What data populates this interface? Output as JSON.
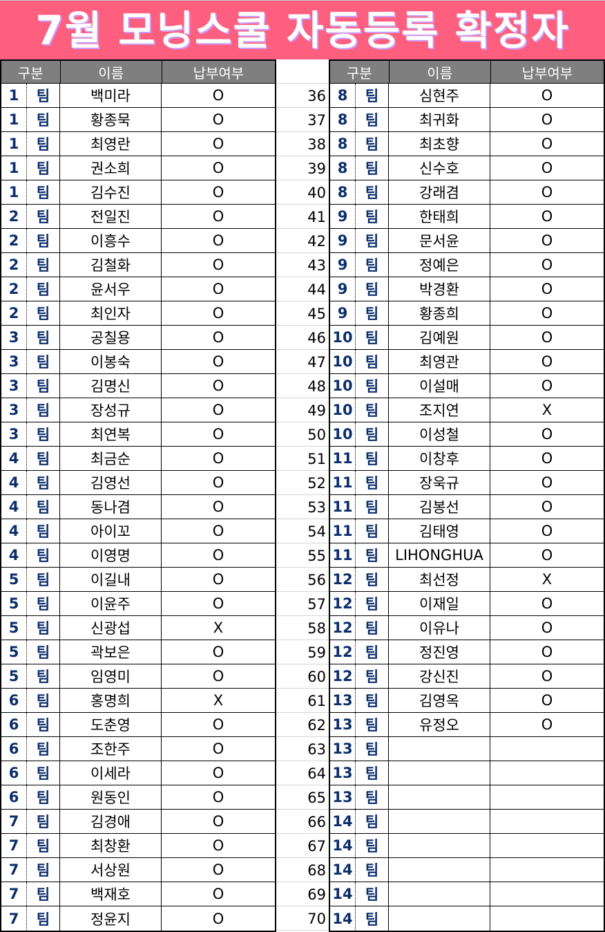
{
  "title": "7월 모닝스쿨 자동등록 확정자",
  "headers": {
    "group": "구분",
    "name": "이름",
    "paid": "납부여부"
  },
  "team_suffix": "팀",
  "left_rows": [
    {
      "team": "1",
      "name": "백미라",
      "paid": "O"
    },
    {
      "team": "1",
      "name": "황종묵",
      "paid": "O"
    },
    {
      "team": "1",
      "name": "최영란",
      "paid": "O"
    },
    {
      "team": "1",
      "name": "권소희",
      "paid": "O"
    },
    {
      "team": "1",
      "name": "김수진",
      "paid": "O"
    },
    {
      "team": "2",
      "name": "전일진",
      "paid": "O"
    },
    {
      "team": "2",
      "name": "이흥수",
      "paid": "O"
    },
    {
      "team": "2",
      "name": "김철화",
      "paid": "O"
    },
    {
      "team": "2",
      "name": "윤서우",
      "paid": "O"
    },
    {
      "team": "2",
      "name": "최인자",
      "paid": "O"
    },
    {
      "team": "3",
      "name": "공칠용",
      "paid": "O"
    },
    {
      "team": "3",
      "name": "이봉숙",
      "paid": "O"
    },
    {
      "team": "3",
      "name": "김명신",
      "paid": "O"
    },
    {
      "team": "3",
      "name": "장성규",
      "paid": "O"
    },
    {
      "team": "3",
      "name": "최연복",
      "paid": "O"
    },
    {
      "team": "4",
      "name": "최금순",
      "paid": "O"
    },
    {
      "team": "4",
      "name": "김영선",
      "paid": "O"
    },
    {
      "team": "4",
      "name": "동나겸",
      "paid": "O"
    },
    {
      "team": "4",
      "name": "아이꼬",
      "paid": "O"
    },
    {
      "team": "4",
      "name": "이영명",
      "paid": "O"
    },
    {
      "team": "5",
      "name": "이길내",
      "paid": "O"
    },
    {
      "team": "5",
      "name": "이윤주",
      "paid": "O"
    },
    {
      "team": "5",
      "name": "신광섭",
      "paid": "X"
    },
    {
      "team": "5",
      "name": "곽보은",
      "paid": "O"
    },
    {
      "team": "5",
      "name": "임영미",
      "paid": "O"
    },
    {
      "team": "6",
      "name": "홍명희",
      "paid": "X"
    },
    {
      "team": "6",
      "name": "도춘영",
      "paid": "O"
    },
    {
      "team": "6",
      "name": "조한주",
      "paid": "O"
    },
    {
      "team": "6",
      "name": "이세라",
      "paid": "O"
    },
    {
      "team": "6",
      "name": "원동인",
      "paid": "O"
    },
    {
      "team": "7",
      "name": "김경애",
      "paid": "O"
    },
    {
      "team": "7",
      "name": "최창환",
      "paid": "O"
    },
    {
      "team": "7",
      "name": "서상원",
      "paid": "O"
    },
    {
      "team": "7",
      "name": "백재호",
      "paid": "O"
    },
    {
      "team": "7",
      "name": "정윤지",
      "paid": "O"
    }
  ],
  "right_rows": [
    {
      "no": "36",
      "team": "8",
      "name": "심현주",
      "paid": "O"
    },
    {
      "no": "37",
      "team": "8",
      "name": "최귀화",
      "paid": "O"
    },
    {
      "no": "38",
      "team": "8",
      "name": "최초향",
      "paid": "O"
    },
    {
      "no": "39",
      "team": "8",
      "name": "신수호",
      "paid": "O"
    },
    {
      "no": "40",
      "team": "8",
      "name": "강래겸",
      "paid": "O"
    },
    {
      "no": "41",
      "team": "9",
      "name": "한태희",
      "paid": "O"
    },
    {
      "no": "42",
      "team": "9",
      "name": "문서윤",
      "paid": "O"
    },
    {
      "no": "43",
      "team": "9",
      "name": "정예은",
      "paid": "O"
    },
    {
      "no": "44",
      "team": "9",
      "name": "박경환",
      "paid": "O"
    },
    {
      "no": "45",
      "team": "9",
      "name": "황종희",
      "paid": "O"
    },
    {
      "no": "46",
      "team": "10",
      "name": "김예원",
      "paid": "O"
    },
    {
      "no": "47",
      "team": "10",
      "name": "최영관",
      "paid": "O"
    },
    {
      "no": "48",
      "team": "10",
      "name": "이설매",
      "paid": "O"
    },
    {
      "no": "49",
      "team": "10",
      "name": "조지연",
      "paid": "X"
    },
    {
      "no": "50",
      "team": "10",
      "name": "이성철",
      "paid": "O"
    },
    {
      "no": "51",
      "team": "11",
      "name": "이창후",
      "paid": "O"
    },
    {
      "no": "52",
      "team": "11",
      "name": "장욱규",
      "paid": "O"
    },
    {
      "no": "53",
      "team": "11",
      "name": "김봉선",
      "paid": "O"
    },
    {
      "no": "54",
      "team": "11",
      "name": "김태영",
      "paid": "O"
    },
    {
      "no": "55",
      "team": "11",
      "name": "LIHONGHUA",
      "paid": "O"
    },
    {
      "no": "56",
      "team": "12",
      "name": "최선정",
      "paid": "X"
    },
    {
      "no": "57",
      "team": "12",
      "name": "이재일",
      "paid": "O"
    },
    {
      "no": "58",
      "team": "12",
      "name": "이유나",
      "paid": "O"
    },
    {
      "no": "59",
      "team": "12",
      "name": "정진영",
      "paid": "O"
    },
    {
      "no": "60",
      "team": "12",
      "name": "강신진",
      "paid": "O"
    },
    {
      "no": "61",
      "team": "13",
      "name": "김영옥",
      "paid": "O"
    },
    {
      "no": "62",
      "team": "13",
      "name": "유정오",
      "paid": "O"
    },
    {
      "no": "63",
      "team": "13",
      "name": "",
      "paid": ""
    },
    {
      "no": "64",
      "team": "13",
      "name": "",
      "paid": ""
    },
    {
      "no": "65",
      "team": "13",
      "name": "",
      "paid": ""
    },
    {
      "no": "66",
      "team": "14",
      "name": "",
      "paid": ""
    },
    {
      "no": "67",
      "team": "14",
      "name": "",
      "paid": ""
    },
    {
      "no": "68",
      "team": "14",
      "name": "",
      "paid": ""
    },
    {
      "no": "69",
      "team": "14",
      "name": "",
      "paid": ""
    },
    {
      "no": "70",
      "team": "14",
      "name": "",
      "paid": ""
    }
  ]
}
